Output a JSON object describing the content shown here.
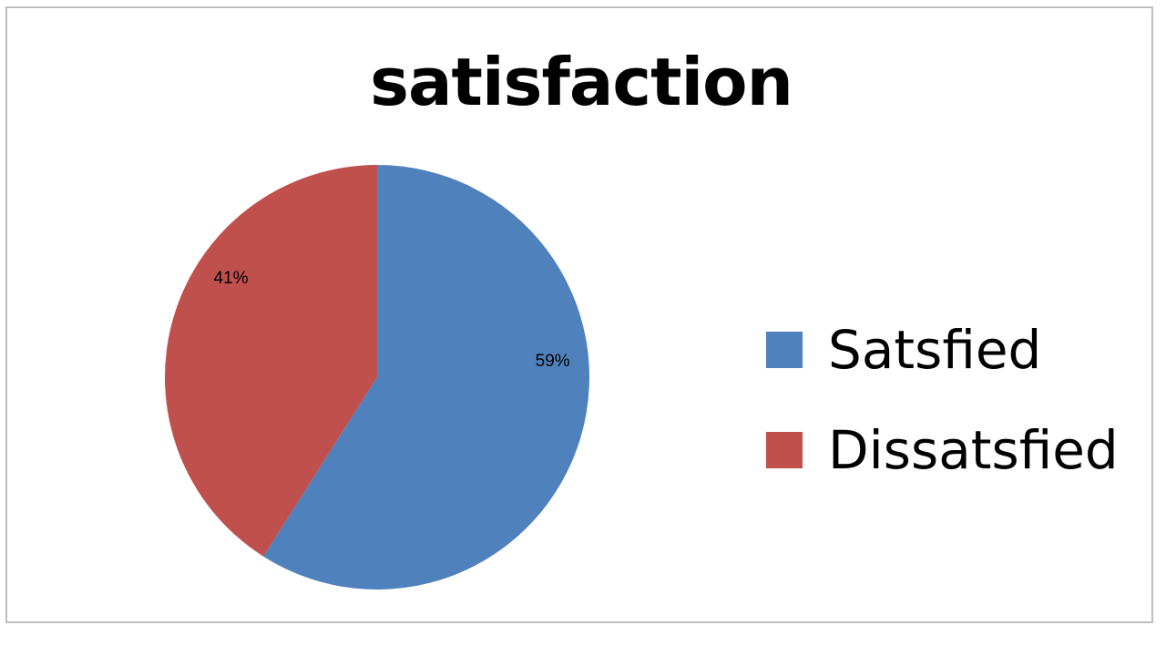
{
  "chart_data": {
    "type": "pie",
    "title": "satisfaction",
    "slices": [
      {
        "name": "Satsfied",
        "value": 59,
        "label": "59%",
        "color": "#4F81BD"
      },
      {
        "name": "Dissatsfied",
        "value": 41,
        "label": "41%",
        "color": "#C0504D"
      }
    ],
    "legend_position": "right"
  }
}
